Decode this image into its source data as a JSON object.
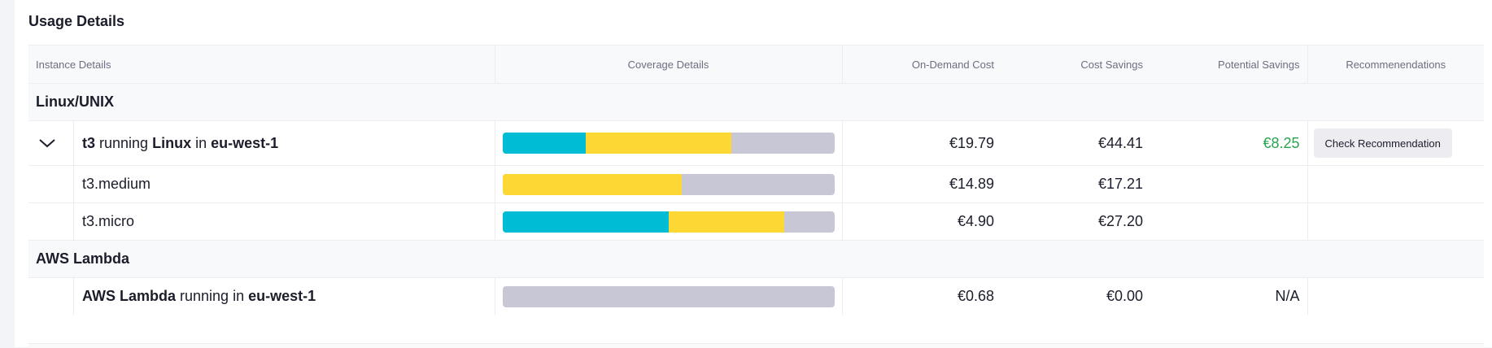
{
  "section": {
    "title": "Usage Details"
  },
  "columns": {
    "instance": "Instance Details",
    "coverage": "Coverage Details",
    "on_demand": "On-Demand Cost",
    "savings": "Cost Savings",
    "potential": "Potential Savings",
    "recommendations": "Recommenendations"
  },
  "groups": [
    {
      "name": "Linux/UNIX"
    },
    {
      "name": "AWS Lambda"
    }
  ],
  "rows": [
    {
      "parts": [
        "t3",
        " running ",
        "Linux",
        " in ",
        "eu-west-1"
      ],
      "coverage": {
        "ri_percent": 25,
        "sp_percent": 44
      },
      "on_demand": "€19.79",
      "savings": "€44.41",
      "potential": "€8.25",
      "recommendation_button": "Check Recommendation"
    },
    {
      "label": "t3.medium",
      "coverage": {
        "ri_percent": 0,
        "sp_percent": 54
      },
      "on_demand": "€14.89",
      "savings": "€17.21",
      "potential": ""
    },
    {
      "label": "t3.micro",
      "coverage": {
        "ri_percent": 50,
        "sp_percent": 35
      },
      "on_demand": "€4.90",
      "savings": "€27.20",
      "potential": ""
    },
    {
      "parts": [
        "AWS Lambda",
        " running in ",
        "eu-west-1"
      ],
      "coverage": {
        "ri_percent": 0,
        "sp_percent": 0
      },
      "on_demand": "€0.68",
      "savings": "€0.00",
      "potential": "N/A"
    }
  ],
  "colors": {
    "ri": "#00bcd4",
    "sp": "#fdd835",
    "uncovered": "#c8c7d6",
    "positive": "#2aa44f"
  },
  "icons": {
    "expand": "chevron-down-icon"
  }
}
